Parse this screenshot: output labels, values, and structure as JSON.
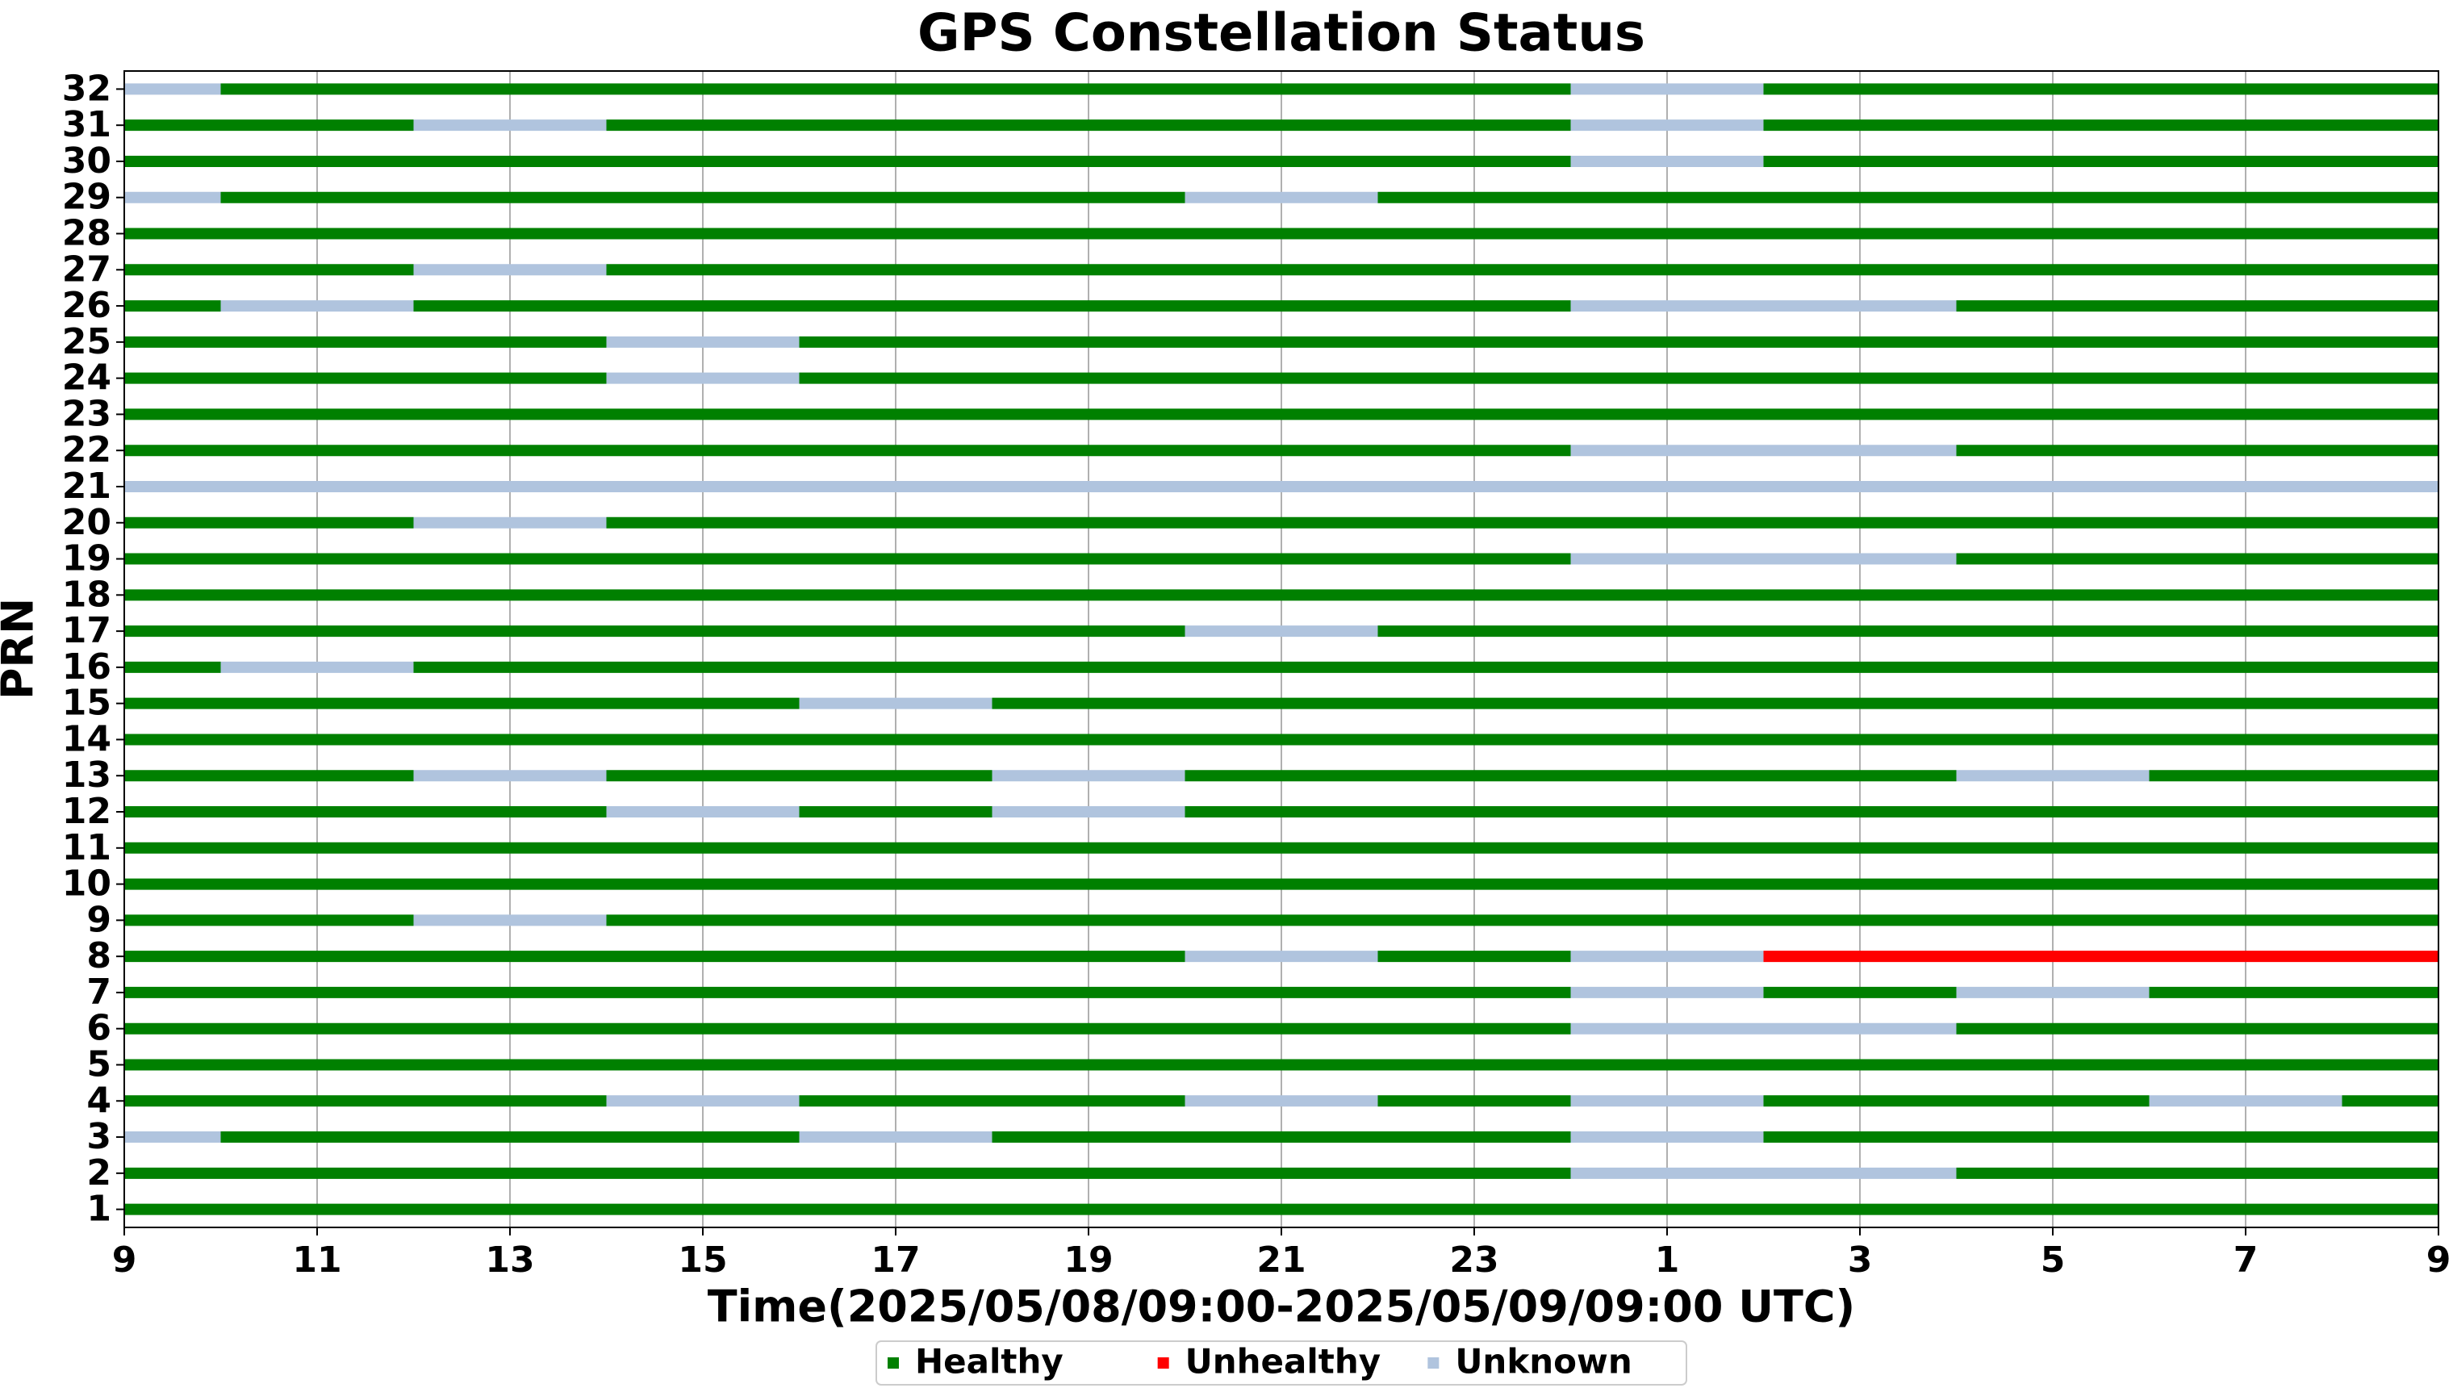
{
  "chart_data": {
    "type": "timeline",
    "title": "GPS Constellation Status",
    "xlabel": "Time(2025/05/08/09:00-2025/05/09/09:00 UTC)",
    "ylabel": "PRN",
    "categories": [
      "1",
      "2",
      "3",
      "4",
      "5",
      "6",
      "7",
      "8",
      "9",
      "10",
      "11",
      "12",
      "13",
      "14",
      "15",
      "16",
      "17",
      "18",
      "19",
      "20",
      "21",
      "22",
      "23",
      "24",
      "25",
      "26",
      "27",
      "28",
      "29",
      "30",
      "31",
      "32"
    ],
    "xlim": [
      0,
      24
    ],
    "xticks": [
      {
        "value": 0,
        "label": "9"
      },
      {
        "value": 2,
        "label": "11"
      },
      {
        "value": 4,
        "label": "13"
      },
      {
        "value": 6,
        "label": "15"
      },
      {
        "value": 8,
        "label": "17"
      },
      {
        "value": 10,
        "label": "19"
      },
      {
        "value": 12,
        "label": "21"
      },
      {
        "value": 14,
        "label": "23"
      },
      {
        "value": 16,
        "label": "1"
      },
      {
        "value": 18,
        "label": "3"
      },
      {
        "value": 20,
        "label": "5"
      },
      {
        "value": 22,
        "label": "7"
      },
      {
        "value": 24,
        "label": "9"
      }
    ],
    "grid": true,
    "series": [
      {
        "name": "Healthy",
        "color": "#008000",
        "rows": [
          [
            [
              0,
              24
            ]
          ],
          [
            [
              0,
              15
            ],
            [
              19,
              24
            ]
          ],
          [
            [
              1,
              7
            ],
            [
              9,
              15
            ],
            [
              17,
              24
            ]
          ],
          [
            [
              0,
              5
            ],
            [
              7,
              11
            ],
            [
              13,
              15
            ],
            [
              17,
              21
            ],
            [
              23,
              24
            ]
          ],
          [
            [
              0,
              24
            ]
          ],
          [
            [
              0,
              15
            ],
            [
              19,
              24
            ]
          ],
          [
            [
              0,
              15
            ],
            [
              17,
              19
            ],
            [
              21,
              24
            ]
          ],
          [
            [
              0,
              11
            ],
            [
              13,
              15
            ]
          ],
          [
            [
              0,
              3
            ],
            [
              5,
              24
            ]
          ],
          [
            [
              0,
              24
            ]
          ],
          [
            [
              0,
              24
            ]
          ],
          [
            [
              0,
              5
            ],
            [
              7,
              9
            ],
            [
              11,
              24
            ]
          ],
          [
            [
              0,
              3
            ],
            [
              5,
              9
            ],
            [
              11,
              19
            ],
            [
              21,
              24
            ]
          ],
          [
            [
              0,
              24
            ]
          ],
          [
            [
              0,
              7
            ],
            [
              9,
              24
            ]
          ],
          [
            [
              0,
              1
            ],
            [
              3,
              24
            ]
          ],
          [
            [
              0,
              11
            ],
            [
              13,
              24
            ]
          ],
          [
            [
              0,
              24
            ]
          ],
          [
            [
              0,
              15
            ],
            [
              19,
              24
            ]
          ],
          [
            [
              0,
              3
            ],
            [
              5,
              24
            ]
          ],
          [],
          [
            [
              0,
              15
            ],
            [
              19,
              24
            ]
          ],
          [
            [
              0,
              24
            ]
          ],
          [
            [
              0,
              5
            ],
            [
              7,
              24
            ]
          ],
          [
            [
              0,
              5
            ],
            [
              7,
              24
            ]
          ],
          [
            [
              0,
              1
            ],
            [
              3,
              15
            ],
            [
              19,
              24
            ]
          ],
          [
            [
              0,
              3
            ],
            [
              5,
              24
            ]
          ],
          [
            [
              0,
              24
            ]
          ],
          [
            [
              1,
              11
            ],
            [
              13,
              24
            ]
          ],
          [
            [
              0,
              15
            ],
            [
              17,
              24
            ]
          ],
          [
            [
              0,
              3
            ],
            [
              5,
              15
            ],
            [
              17,
              24
            ]
          ],
          [
            [
              1,
              15
            ],
            [
              17,
              24
            ]
          ]
        ]
      },
      {
        "name": "Unhealthy",
        "color": "#ff0000",
        "rows": [
          [],
          [],
          [],
          [],
          [],
          [],
          [],
          [
            [
              17,
              24
            ]
          ],
          [],
          [],
          [],
          [],
          [],
          [],
          [],
          [],
          [],
          [],
          [],
          [],
          [],
          [],
          [],
          [],
          [],
          [],
          [],
          [],
          [],
          [],
          [],
          []
        ]
      },
      {
        "name": "Unknown",
        "color": "#b0c4de",
        "rows": [
          [],
          [
            [
              15,
              19
            ]
          ],
          [
            [
              0,
              1
            ],
            [
              7,
              9
            ],
            [
              15,
              17
            ]
          ],
          [
            [
              5,
              7
            ],
            [
              11,
              13
            ],
            [
              15,
              17
            ],
            [
              21,
              23
            ]
          ],
          [],
          [
            [
              15,
              19
            ]
          ],
          [
            [
              15,
              17
            ],
            [
              19,
              21
            ]
          ],
          [
            [
              11,
              13
            ],
            [
              15,
              17
            ]
          ],
          [
            [
              3,
              5
            ]
          ],
          [],
          [],
          [
            [
              5,
              7
            ],
            [
              9,
              11
            ]
          ],
          [
            [
              3,
              5
            ],
            [
              9,
              11
            ],
            [
              19,
              21
            ]
          ],
          [],
          [
            [
              7,
              9
            ]
          ],
          [
            [
              1,
              3
            ]
          ],
          [
            [
              11,
              13
            ]
          ],
          [],
          [
            [
              15,
              19
            ]
          ],
          [
            [
              3,
              5
            ]
          ],
          [
            [
              0,
              24
            ]
          ],
          [
            [
              15,
              19
            ]
          ],
          [],
          [
            [
              5,
              7
            ]
          ],
          [
            [
              5,
              7
            ]
          ],
          [
            [
              1,
              3
            ],
            [
              15,
              19
            ]
          ],
          [
            [
              3,
              5
            ]
          ],
          [],
          [
            [
              0,
              1
            ],
            [
              11,
              13
            ]
          ],
          [
            [
              15,
              17
            ]
          ],
          [
            [
              3,
              5
            ],
            [
              15,
              17
            ]
          ],
          [
            [
              0,
              1
            ],
            [
              15,
              17
            ]
          ]
        ]
      }
    ]
  }
}
